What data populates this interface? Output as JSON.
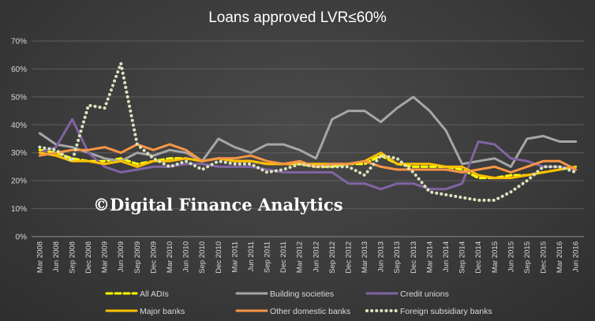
{
  "chart_data": {
    "type": "line",
    "title": "Loans approved LVR≤60%",
    "watermark": "©Digital Finance Analytics",
    "xlabel": "",
    "ylabel": "",
    "ylim": [
      0,
      70
    ],
    "yticks": [
      "0%",
      "10%",
      "20%",
      "30%",
      "40%",
      "50%",
      "60%",
      "70%"
    ],
    "grid": "horizontal",
    "legend_position": "bottom",
    "categories": [
      "Mar 2008",
      "Jun 2008",
      "Sep 2008",
      "Dec 2008",
      "Mar 2009",
      "Jun 2009",
      "Sep 2009",
      "Dec 2009",
      "Mar 2010",
      "Jun 2010",
      "Sep 2010",
      "Dec 2010",
      "Mar 2011",
      "Jun 2011",
      "Sep 2011",
      "Dec 2011",
      "Mar 2012",
      "Jun 2012",
      "Sep 2012",
      "Dec 2012",
      "Mar 2013",
      "Jun 2013",
      "Sep 2013",
      "Dec 2013",
      "Mar 2014",
      "Jun 2014",
      "Sep 2014",
      "Dec 2014",
      "Mar 2015",
      "Jun 2015",
      "Sep 2015",
      "Dec 2015",
      "Mar 2016",
      "Jun 2016"
    ],
    "series": [
      {
        "name": "All ADIs",
        "color": "#ffff00",
        "style": "dash",
        "values": [
          31,
          30,
          28,
          27,
          27,
          28,
          26,
          27,
          28,
          28,
          27,
          28,
          27,
          27,
          26,
          26,
          26,
          25,
          25,
          26,
          26,
          29,
          26,
          25,
          25,
          25,
          24,
          21,
          21,
          22,
          22,
          23,
          24,
          25
        ]
      },
      {
        "name": "Building societies",
        "color": "#a6a6a6",
        "style": "solid",
        "values": [
          37,
          33,
          32,
          30,
          28,
          27,
          30,
          29,
          31,
          30,
          27,
          35,
          32,
          30,
          33,
          33,
          31,
          28,
          42,
          45,
          45,
          41,
          46,
          50,
          45,
          38,
          26,
          27,
          28,
          25,
          35,
          36,
          34,
          34
        ]
      },
      {
        "name": "Credit unions",
        "color": "#8064a2",
        "style": "solid",
        "values": [
          30,
          32,
          42,
          30,
          25,
          23,
          24,
          25,
          25,
          26,
          26,
          25,
          25,
          25,
          24,
          23,
          23,
          23,
          23,
          19,
          19,
          17,
          19,
          19,
          17,
          17,
          19,
          34,
          33,
          28,
          27,
          25,
          25,
          24
        ]
      },
      {
        "name": "Major banks",
        "color": "#ffc000",
        "style": "solid",
        "values": [
          30,
          29,
          27,
          27,
          26,
          27,
          25,
          27,
          27,
          28,
          27,
          28,
          27,
          27,
          26,
          26,
          26,
          26,
          26,
          26,
          27,
          30,
          26,
          26,
          26,
          25,
          25,
          22,
          21,
          21,
          22,
          23,
          24,
          25
        ]
      },
      {
        "name": "Other domestic banks",
        "color": "#f79646",
        "style": "solid",
        "values": [
          29,
          30,
          31,
          31,
          32,
          30,
          33,
          31,
          33,
          31,
          27,
          28,
          28,
          29,
          27,
          26,
          27,
          25,
          26,
          26,
          27,
          25,
          24,
          24,
          24,
          24,
          23,
          24,
          25,
          23,
          25,
          27,
          27,
          24
        ]
      },
      {
        "name": "Foreign subsidiary banks",
        "color": "#d8e4bc",
        "style": "dot",
        "values": [
          32,
          31,
          27,
          47,
          46,
          62,
          33,
          28,
          25,
          27,
          24,
          27,
          26,
          26,
          23,
          24,
          26,
          25,
          25,
          25,
          22,
          29,
          28,
          23,
          16,
          15,
          14,
          13,
          13,
          16,
          20,
          25,
          25,
          23
        ]
      }
    ]
  }
}
